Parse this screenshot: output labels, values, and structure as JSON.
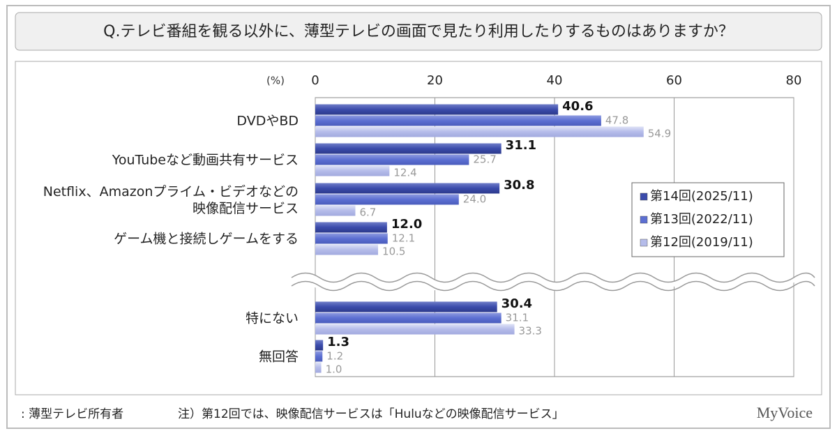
{
  "chart_data": {
    "type": "bar",
    "orientation": "horizontal",
    "title": "Q.テレビ番組を観る以外に、薄型テレビの画面で見たり利用したりするものはありますか？",
    "axis_label": "(%)",
    "categories": [
      "DVDやBD",
      "YouTubeなど動画共有サービス",
      "Netflix、Amazonプライム・ビデオなどの\n映像配信サービス",
      "ゲーム機と接続しゲームをする",
      "特にない",
      "無回答"
    ],
    "series": [
      {
        "name": "第14回(2025/11)",
        "color": "#3b4bab",
        "values": [
          40.6,
          31.1,
          30.8,
          12.0,
          30.4,
          1.3
        ],
        "value_labels": [
          "40.6",
          "31.1",
          "30.8",
          "12.0",
          "30.4",
          "1.3"
        ]
      },
      {
        "name": "第13回(2022/11)",
        "color": "#5c6fd2",
        "values": [
          47.8,
          25.7,
          24.0,
          12.1,
          31.1,
          1.2
        ],
        "value_labels": [
          "47.8",
          "25.7",
          "24.0",
          "12.1",
          "31.1",
          "1.2"
        ]
      },
      {
        "name": "第12回(2019/11)",
        "color": "#b5bcea",
        "values": [
          54.9,
          12.4,
          6.7,
          10.5,
          33.3,
          1.0
        ],
        "value_labels": [
          "54.9",
          "12.4",
          "6.7",
          "10.5",
          "33.3",
          "1.0"
        ]
      }
    ],
    "xlim": [
      0,
      80
    ],
    "xticks": [
      0,
      20,
      40,
      60,
      80
    ],
    "grid": true,
    "legend": "right",
    "notes": [
      ": 薄型テレビ所有者",
      "注）第12回では、映像配信サービスは「Huluなどの映像配信サービス」"
    ],
    "source": "MyVoice"
  }
}
